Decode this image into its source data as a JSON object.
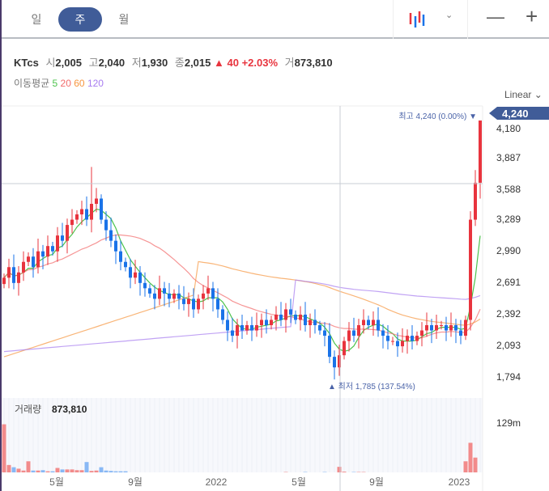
{
  "toolbar": {
    "tabs": [
      "일",
      "주",
      "월"
    ],
    "active_tab": "주",
    "chart_type_icon": "candlestick-icon",
    "zoom_out": "—",
    "zoom_in": "+"
  },
  "info": {
    "name": "KTcs",
    "open_label": "시",
    "open": "2,005",
    "high_label": "고",
    "high": "2,040",
    "low_label": "저",
    "low": "1,930",
    "close_label": "종",
    "close": "2,015",
    "change": "▲ 40",
    "change_pct": "+2.03%",
    "volume_label": "거",
    "volume": "873,810"
  },
  "ma": {
    "label": "이동평균",
    "periods": [
      "5",
      "20",
      "60",
      "120"
    ],
    "colors": [
      "#4cc34c",
      "#f26a6a",
      "#f7963f",
      "#a77cf0"
    ]
  },
  "scale": "Linear",
  "markers": {
    "max": "최고 4,240 (0.00%) ▼",
    "min": "▲ 최저 1,785 (137.54%)",
    "current_price": "4,240"
  },
  "volume_panel": {
    "label": "거래량",
    "value": "873,810",
    "max_label": "129m"
  },
  "colors": {
    "up": "#e8343e",
    "down": "#1a73e8",
    "tab_active": "#405c98"
  },
  "chart_data": {
    "type": "candlestick",
    "y_ticks": [
      "4,180",
      "3,887",
      "3,588",
      "3,289",
      "2,990",
      "2,691",
      "2,392",
      "2,093",
      "1,794"
    ],
    "x_ticks": [
      "5월",
      "9월",
      "2022",
      "5월",
      "9월",
      "2023"
    ],
    "ylim": [
      1794,
      4240
    ],
    "closes": [
      2750,
      2850,
      2700,
      2800,
      2900,
      2950,
      2850,
      3000,
      2950,
      3050,
      3000,
      3150,
      3100,
      3250,
      3300,
      3350,
      3400,
      3300,
      3450,
      3500,
      3300,
      3200,
      3100,
      3000,
      2900,
      2850,
      2750,
      2800,
      2700,
      2650,
      2600,
      2550,
      2650,
      2600,
      2550,
      2600,
      2550,
      2500,
      2550,
      2450,
      2550,
      2600,
      2650,
      2550,
      2450,
      2350,
      2250,
      2200,
      2300,
      2250,
      2300,
      2250,
      2300,
      2350,
      2300,
      2350,
      2400,
      2350,
      2450,
      2400,
      2350,
      2400,
      2300,
      2350,
      2300,
      2250,
      2200,
      2000,
      1900,
      2015,
      2150,
      2250,
      2200,
      2300,
      2350,
      2300,
      2350,
      2250,
      2200,
      2150,
      2150,
      2100,
      2150,
      2200,
      2150,
      2200,
      2250,
      2300,
      2250,
      2300,
      2300,
      2250,
      2300,
      2250,
      2200,
      2350,
      3300,
      3650,
      4240
    ],
    "volumes_m": [
      130,
      20,
      14,
      10,
      5,
      30,
      5,
      5,
      6,
      3,
      3,
      12,
      8,
      8,
      8,
      6,
      6,
      28,
      4,
      5,
      14,
      5,
      4,
      3,
      3,
      3,
      0,
      0,
      0,
      0,
      0,
      0,
      0,
      0,
      0,
      0,
      0,
      0,
      0,
      0,
      0,
      0,
      0,
      0,
      0,
      0,
      0,
      0,
      0,
      0,
      0,
      0,
      0,
      0,
      0,
      0,
      0,
      0,
      1,
      0,
      0,
      0,
      1,
      0,
      0,
      0,
      1,
      0,
      0,
      15,
      2,
      0,
      1,
      1,
      1,
      0,
      0,
      0,
      0,
      0,
      0,
      0,
      0,
      0,
      0,
      0,
      0,
      0,
      0,
      0,
      0,
      0,
      0,
      0,
      0,
      30,
      80,
      40,
      0
    ]
  }
}
